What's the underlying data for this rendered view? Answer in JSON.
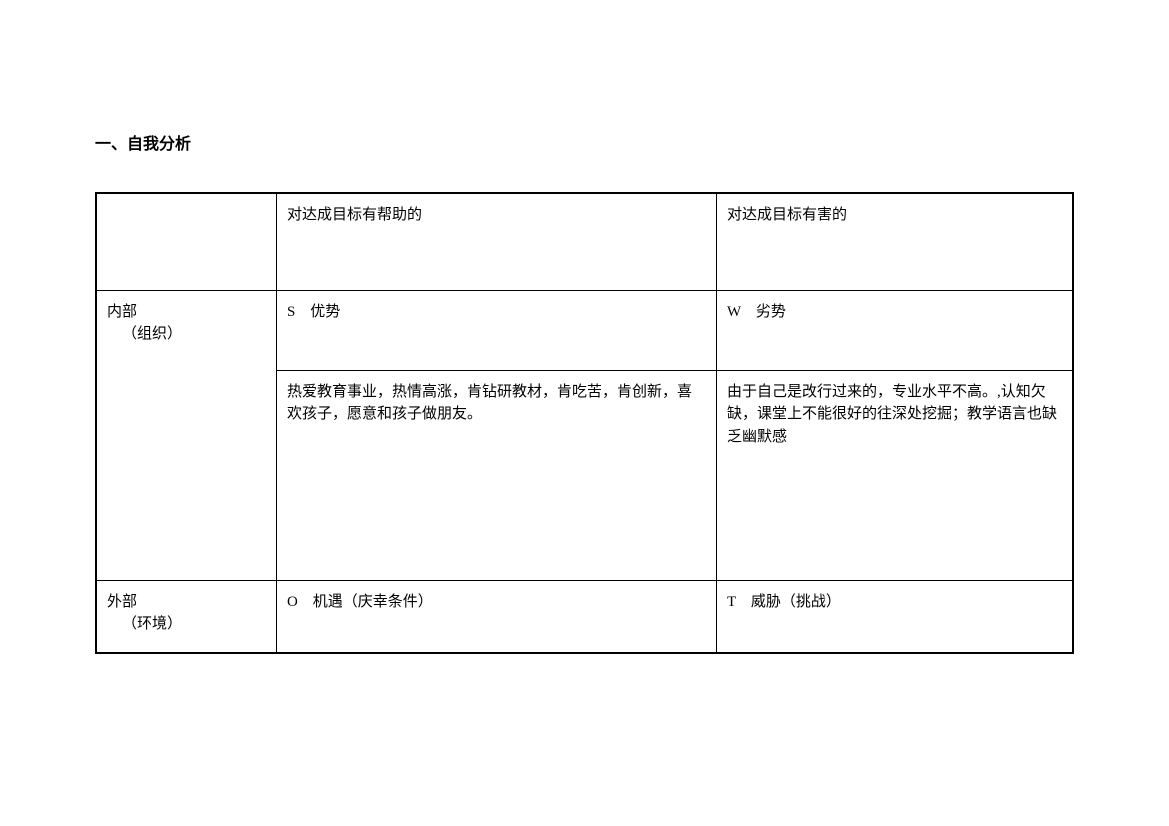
{
  "section_title": "一、自我分析",
  "table": {
    "header": {
      "blank": "",
      "helpful": "对达成目标有帮助的",
      "harmful": "对达成目标有害的"
    },
    "internal": {
      "label_line1": "内部",
      "label_line2": "（组织）",
      "s_label": "S　优势",
      "w_label": "W　劣势",
      "s_content": "热爱教育事业，热情高涨，肯钻研教材，肯吃苦，肯创新，喜欢孩子，愿意和孩子做朋友。",
      "w_content": "由于自己是改行过来的，专业水平不高。,认知欠缺，课堂上不能很好的往深处挖掘；教学语言也缺乏幽默感"
    },
    "external": {
      "label_line1": "外部",
      "label_line2": "（环境）",
      "o_label": "O　机遇（庆幸条件）",
      "t_label": "T　威胁（挑战）"
    }
  },
  "styling": {
    "font_family": "SimSun",
    "text_color": "#000000",
    "background_color": "#ffffff",
    "border_color": "#000000",
    "outer_border_width": 2,
    "inner_border_width": 1,
    "title_fontsize": 16,
    "cell_fontsize": 15,
    "line_height": 1.5
  }
}
